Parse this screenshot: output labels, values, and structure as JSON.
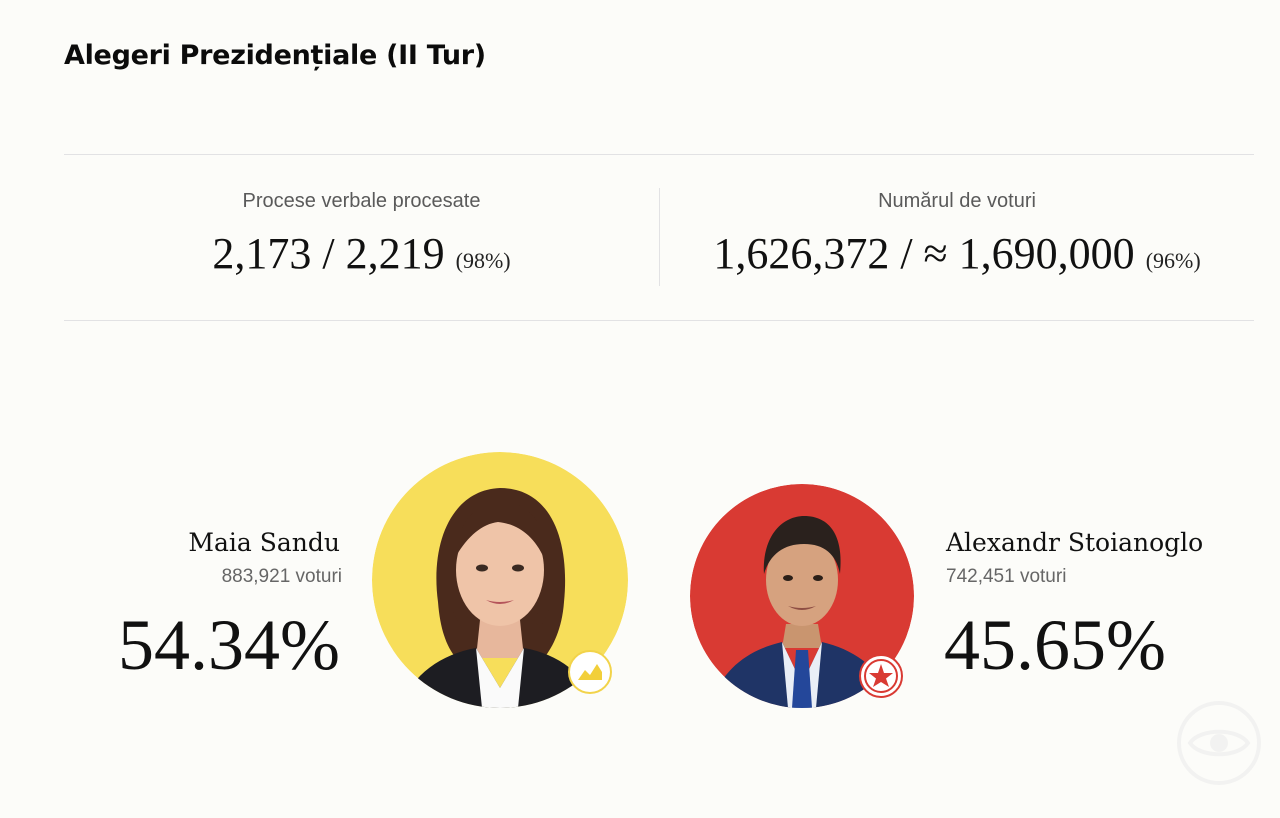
{
  "page": {
    "title": "Alegeri Prezidențiale (II Tur)"
  },
  "stats": {
    "protocols": {
      "label": "Procese verbale procesate",
      "value": "2,173 / 2,219",
      "percent": "(98%)"
    },
    "votes": {
      "label": "Numărul de voturi",
      "value": "1,626,372 / ≈ 1,690,000",
      "percent": "(96%)"
    }
  },
  "candidates": [
    {
      "name": "Maia Sandu",
      "votes": "883,921 voturi",
      "percent": "54.34%",
      "share": 0.5434,
      "color": "#f7de5a",
      "badge_icon": "party-pas-logo-icon"
    },
    {
      "name": "Alexandr Stoianoglo",
      "votes": "742,451 voturi",
      "percent": "45.65%",
      "share": 0.4565,
      "color": "#d93a33",
      "badge_icon": "party-psrm-star-icon"
    }
  ],
  "colors": {
    "background": "#fcfcf9",
    "divider": "#e2e2e4",
    "text": "#111111",
    "muted": "#666666"
  }
}
